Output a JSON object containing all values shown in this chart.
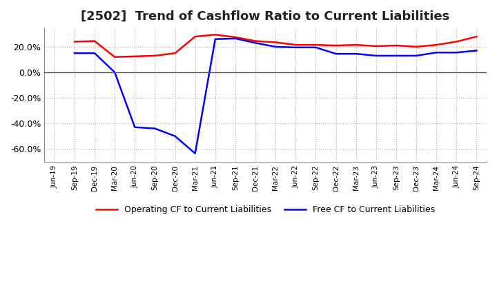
{
  "title": "[2502]  Trend of Cashflow Ratio to Current Liabilities",
  "title_fontsize": 13,
  "x_labels": [
    "Jun-19",
    "Sep-19",
    "Dec-19",
    "Mar-20",
    "Jun-20",
    "Sep-20",
    "Dec-20",
    "Mar-21",
    "Jun-21",
    "Sep-21",
    "Dec-21",
    "Mar-22",
    "Jun-22",
    "Sep-22",
    "Dec-22",
    "Mar-23",
    "Jun-23",
    "Sep-23",
    "Dec-23",
    "Mar-24",
    "Jun-24",
    "Sep-24"
  ],
  "operating_cf": [
    null,
    24.0,
    24.5,
    12.0,
    12.5,
    13.0,
    15.0,
    28.0,
    29.5,
    27.5,
    24.5,
    23.5,
    21.5,
    21.5,
    21.0,
    21.5,
    20.5,
    21.0,
    20.0,
    21.5,
    24.0,
    28.0
  ],
  "free_cf": [
    null,
    15.0,
    15.0,
    0.0,
    -43.0,
    -44.0,
    -50.0,
    -63.5,
    26.0,
    26.5,
    23.0,
    20.0,
    19.5,
    19.5,
    14.5,
    14.5,
    13.0,
    13.0,
    13.0,
    15.5,
    15.5,
    17.0
  ],
  "ylim": [
    -70,
    35
  ],
  "yticks": [
    -60,
    -40,
    -20,
    0,
    20
  ],
  "operating_color": "#FF0000",
  "free_color": "#0000FF",
  "grid_color": "#AAAAAA",
  "zero_line_color": "#555555",
  "background_color": "#FFFFFF",
  "legend_labels": [
    "Operating CF to Current Liabilities",
    "Free CF to Current Liabilities"
  ]
}
